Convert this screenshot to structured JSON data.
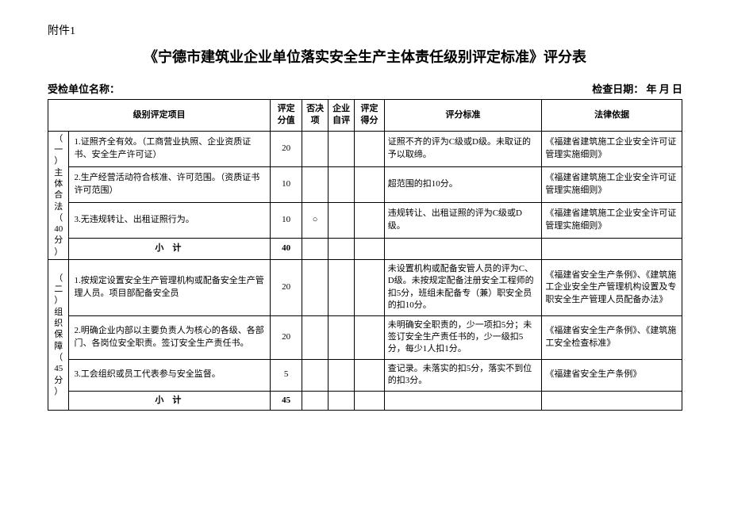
{
  "attachment_label": "附件1",
  "title": "《宁德市建筑业企业单位落实安全生产主体责任级别评定标准》评分表",
  "inspected_unit_label": "受检单位名称：",
  "check_date_label": "检查日期：       年    月    日",
  "columns": {
    "item": "级别评定项目",
    "score": "评定分值",
    "veto": "否决项",
    "self": "企业自评",
    "eval": "评定得分",
    "std": "评分标准",
    "law": "法律依据"
  },
  "sections": [
    {
      "label": "（一）主体合法（40分）",
      "rows": [
        {
          "item": "1.证照齐全有效。（工商营业执照、企业资质证书、安全生产许可证）",
          "score": "20",
          "veto": "",
          "std": "证照不齐的评为C级或D级。未取证的予以取缔。",
          "law": "《福建省建筑施工企业安全许可证管理实施细则》"
        },
        {
          "item": "2.生产经营活动符合核准、许可范围。（资质证书许可范围）",
          "score": "10",
          "veto": "",
          "std": "超范围的扣10分。",
          "law": "《福建省建筑施工企业安全许可证管理实施细则》"
        },
        {
          "item": "3.无违规转让、出租证照行为。",
          "score": "10",
          "veto": "○",
          "std": "违规转让、出租证照的评为C级或D级。",
          "law": "《福建省建筑施工企业安全许可证管理实施细则》"
        }
      ],
      "subtotal_label": "小计",
      "subtotal_score": "40"
    },
    {
      "label": "（二）组织保障（45分）",
      "rows": [
        {
          "item": "1.按规定设置安全生产管理机构或配备安全生产管理人员。项目部配备安全员",
          "score": "20",
          "veto": "",
          "std": "未设置机构或配备安管人员的评为C、D级。未按规定配备注册安全工程师的扣5分，班组未配备专（兼）职安全员的扣10分。",
          "law": "《福建省安全生产条例》、《建筑施工企业安全生产管理机构设置及专职安全生产管理人员配备办法》"
        },
        {
          "item": "2.明确企业内部以主要负责人为核心的各级、各部门、各岗位安全职责。签订安全生产责任书。",
          "score": "20",
          "veto": "",
          "std": "未明确安全职责的，少一项扣5分；未签订安全生产责任书的，少一级扣5分，每少1人扣1分。",
          "law": "《福建省安全生产条例》、《建筑施工安全检查标准》"
        },
        {
          "item": "3.工会组织或员工代表参与安全监督。",
          "score": "5",
          "veto": "",
          "std": "查记录。未落实的扣5分，落实不到位的扣3分。",
          "law": "《福建省安全生产条例》"
        }
      ],
      "subtotal_label": "小计",
      "subtotal_score": "45"
    }
  ]
}
